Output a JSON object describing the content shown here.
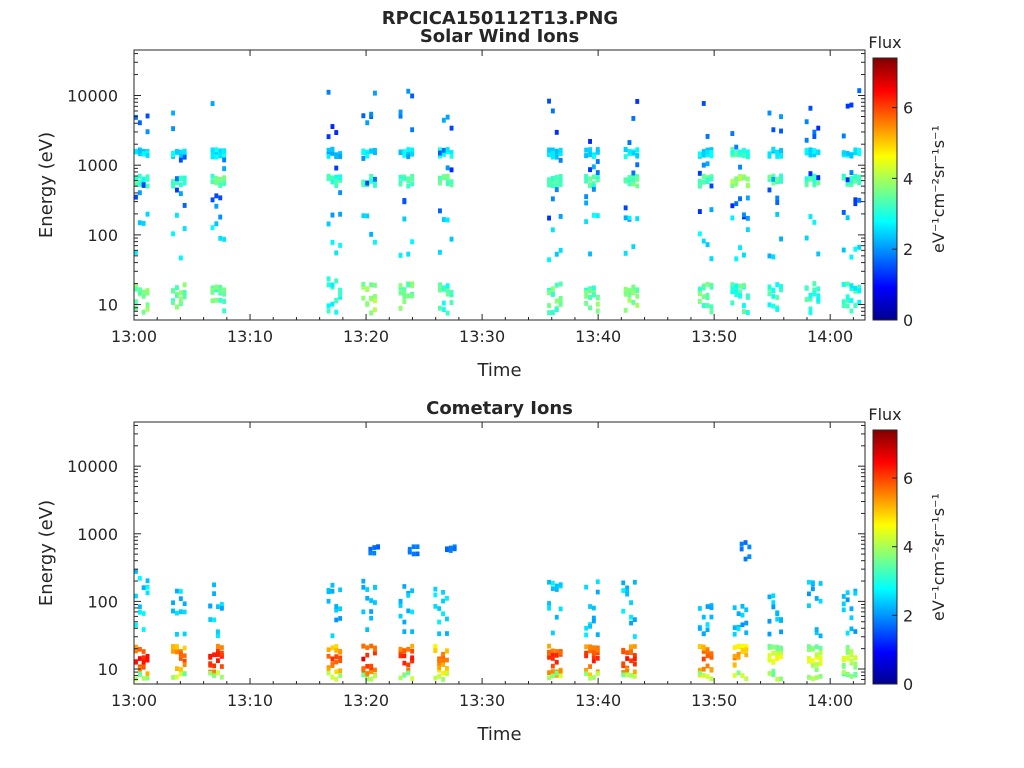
{
  "figure": {
    "title": "RPCICA150112T13.PNG"
  },
  "chart_data": [
    {
      "type": "heatmap",
      "title": "Solar Wind Ions",
      "xlabel": "Time",
      "ylabel": "Energy (eV)",
      "y_scale": "log",
      "ylim": [
        6,
        45000
      ],
      "xlim": [
        "13:00",
        "14:03"
      ],
      "x_ticks": [
        "13:00",
        "13:10",
        "13:20",
        "13:30",
        "13:40",
        "13:50",
        "14:00"
      ],
      "y_ticks": [
        "10",
        "100",
        "1000",
        "10000"
      ],
      "colorbar": {
        "title": "Flux",
        "label": "eV⁻¹cm⁻²sr⁻¹s⁻¹",
        "ticks": [
          "0",
          "2",
          "4",
          "6"
        ],
        "range": [
          0,
          7.4
        ],
        "colormap": "jet"
      },
      "bursts": [
        {
          "t": 0.0,
          "w": 1.2,
          "main": [
            1500,
            600
          ],
          "mainLevel": 2.5,
          "low": [
            10,
            20
          ],
          "lowLevel": 3.5
        },
        {
          "t": 3.2,
          "w": 1.4,
          "main": [
            1500,
            600
          ],
          "mainLevel": 2.6,
          "low": [
            10,
            20
          ],
          "lowLevel": 3.4
        },
        {
          "t": 6.6,
          "w": 1.4,
          "main": [
            1500,
            600
          ],
          "mainLevel": 2.7,
          "low": [
            10,
            20
          ],
          "lowLevel": 3.4
        },
        {
          "t": 16.6,
          "w": 1.4,
          "main": [
            1500,
            600
          ],
          "mainLevel": 2.4,
          "low": [
            10,
            25
          ],
          "lowLevel": 3.0
        },
        {
          "t": 19.6,
          "w": 1.4,
          "main": [
            1500,
            600
          ],
          "mainLevel": 2.6,
          "low": [
            10,
            20
          ],
          "lowLevel": 3.8
        },
        {
          "t": 22.8,
          "w": 1.4,
          "main": [
            1500,
            600
          ],
          "mainLevel": 2.6,
          "low": [
            10,
            20
          ],
          "lowLevel": 3.6
        },
        {
          "t": 26.2,
          "w": 1.4,
          "main": [
            1500,
            600
          ],
          "mainLevel": 2.8,
          "low": [
            10,
            20
          ],
          "lowLevel": 3.2
        },
        {
          "t": 35.6,
          "w": 1.4,
          "main": [
            1500,
            600
          ],
          "mainLevel": 2.6,
          "low": [
            10,
            20
          ],
          "lowLevel": 3.4
        },
        {
          "t": 38.8,
          "w": 1.4,
          "main": [
            1500,
            600
          ],
          "mainLevel": 2.6,
          "low": [
            10,
            20
          ],
          "lowLevel": 3.4
        },
        {
          "t": 42.2,
          "w": 1.4,
          "main": [
            1500,
            600
          ],
          "mainLevel": 2.7,
          "low": [
            10,
            20
          ],
          "lowLevel": 3.6
        },
        {
          "t": 48.6,
          "w": 1.4,
          "main": [
            1500,
            600
          ],
          "mainLevel": 2.6,
          "low": [
            10,
            20
          ],
          "lowLevel": 3.4
        },
        {
          "t": 51.4,
          "w": 1.8,
          "main": [
            1500,
            600
          ],
          "mainLevel": 3.2,
          "low": [
            10,
            20
          ],
          "lowLevel": 3.2
        },
        {
          "t": 54.6,
          "w": 1.4,
          "main": [
            1500,
            600
          ],
          "mainLevel": 2.6,
          "low": [
            10,
            20
          ],
          "lowLevel": 3.0
        },
        {
          "t": 57.8,
          "w": 1.4,
          "main": [
            1500,
            600
          ],
          "mainLevel": 2.6,
          "low": [
            10,
            20
          ],
          "lowLevel": 3.0
        },
        {
          "t": 61.0,
          "w": 1.6,
          "main": [
            1500,
            600
          ],
          "mainLevel": 2.6,
          "low": [
            10,
            20
          ],
          "lowLevel": 3.0
        }
      ]
    },
    {
      "type": "heatmap",
      "title": "Cometary Ions",
      "xlabel": "Time",
      "ylabel": "Energy (eV)",
      "y_scale": "log",
      "ylim": [
        6,
        45000
      ],
      "xlim": [
        "13:00",
        "14:03"
      ],
      "x_ticks": [
        "13:00",
        "13:10",
        "13:20",
        "13:30",
        "13:40",
        "13:50",
        "14:00"
      ],
      "y_ticks": [
        "10",
        "100",
        "1000",
        "10000"
      ],
      "colorbar": {
        "title": "Flux",
        "label": "eV⁻¹cm⁻²sr⁻¹s⁻¹",
        "ticks": [
          "0",
          "2",
          "4",
          "6"
        ],
        "range": [
          0,
          7.4
        ],
        "colormap": "jet"
      },
      "bursts": [
        {
          "t": 0.0,
          "w": 1.2,
          "core": [
            10,
            22
          ],
          "coreLevel": 6.6,
          "tail": [
            30,
            300
          ],
          "tailLevel": 2.5
        },
        {
          "t": 3.2,
          "w": 1.4,
          "core": [
            10,
            22
          ],
          "coreLevel": 6.2,
          "tail": [
            30,
            300
          ],
          "tailLevel": 2.4
        },
        {
          "t": 6.4,
          "w": 1.4,
          "core": [
            10,
            22
          ],
          "coreLevel": 6.8,
          "tail": [
            30,
            200
          ],
          "tailLevel": 2.4
        },
        {
          "t": 16.6,
          "w": 1.4,
          "core": [
            10,
            22
          ],
          "coreLevel": 6.2,
          "tail": [
            30,
            200
          ],
          "tailLevel": 2.3
        },
        {
          "t": 19.6,
          "w": 1.4,
          "core": [
            10,
            22
          ],
          "coreLevel": 6.8,
          "tail": [
            30,
            200
          ],
          "tailLevel": 2.3
        },
        {
          "t": 22.8,
          "w": 1.4,
          "core": [
            10,
            22
          ],
          "coreLevel": 6.6,
          "tail": [
            30,
            200
          ],
          "tailLevel": 2.4
        },
        {
          "t": 25.8,
          "w": 1.4,
          "core": [
            10,
            22
          ],
          "coreLevel": 6.0,
          "tail": [
            30,
            200
          ],
          "tailLevel": 2.4
        },
        {
          "t": 35.6,
          "w": 1.4,
          "core": [
            10,
            22
          ],
          "coreLevel": 6.6,
          "tail": [
            30,
            200
          ],
          "tailLevel": 2.5
        },
        {
          "t": 38.8,
          "w": 1.4,
          "core": [
            10,
            22
          ],
          "coreLevel": 6.6,
          "tail": [
            30,
            200
          ],
          "tailLevel": 2.4
        },
        {
          "t": 42.0,
          "w": 1.4,
          "core": [
            10,
            22
          ],
          "coreLevel": 6.6,
          "tail": [
            30,
            200
          ],
          "tailLevel": 2.4
        },
        {
          "t": 48.6,
          "w": 1.4,
          "core": [
            10,
            22
          ],
          "coreLevel": 6.4,
          "tail": [
            30,
            100
          ],
          "tailLevel": 2.3
        },
        {
          "t": 51.6,
          "w": 1.4,
          "core": [
            10,
            22
          ],
          "coreLevel": 5.8,
          "tail": [
            30,
            100
          ],
          "tailLevel": 2.3
        },
        {
          "t": 54.6,
          "w": 1.4,
          "core": [
            10,
            22
          ],
          "coreLevel": 4.8,
          "tail": [
            30,
            150
          ],
          "tailLevel": 2.3
        },
        {
          "t": 58.0,
          "w": 1.4,
          "core": [
            10,
            22
          ],
          "coreLevel": 4.8,
          "tail": [
            30,
            200
          ],
          "tailLevel": 2.3
        },
        {
          "t": 61.0,
          "w": 1.4,
          "core": [
            10,
            22
          ],
          "coreLevel": 4.6,
          "tail": [
            30,
            150
          ],
          "tailLevel": 2.3
        }
      ],
      "high_patches": [
        {
          "t": 20.2,
          "e": [
            500,
            650
          ],
          "level": 1.6
        },
        {
          "t": 23.6,
          "e": [
            500,
            650
          ],
          "level": 1.6
        },
        {
          "t": 26.8,
          "e": [
            500,
            650
          ],
          "level": 1.6
        },
        {
          "t": 52.2,
          "e": [
            420,
            750
          ],
          "level": 1.7
        }
      ]
    }
  ]
}
